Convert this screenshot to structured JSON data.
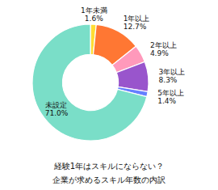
{
  "chart_data": {
    "type": "pie",
    "title": "経験1年はスキルにならない？",
    "subtitle": "企業が求めるスキル年数の内訳",
    "categories": [
      "1年未満",
      "1年以上",
      "2年以上",
      "3年以上",
      "5年以上",
      "未設定"
    ],
    "values": [
      1.6,
      12.7,
      4.9,
      8.3,
      1.4,
      71.0
    ],
    "value_labels": [
      "1.6%",
      "12.7%",
      "4.9%",
      "8.3%",
      "1.4%",
      "71.0%"
    ],
    "colors": [
      "#FFDD33",
      "#FF7733",
      "#FF99BB",
      "#9955CC",
      "#6680FF",
      "#7ADEC8"
    ],
    "data_labels": true
  }
}
